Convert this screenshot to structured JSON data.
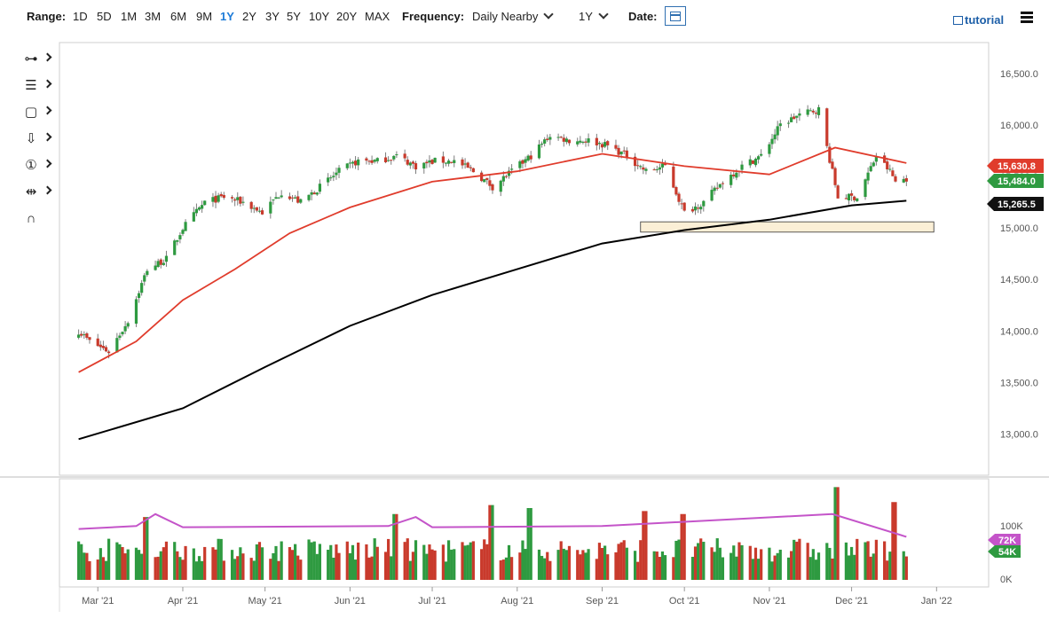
{
  "toolbar": {
    "range_label": "Range:",
    "ranges": [
      "1D",
      "5D",
      "1M",
      "3M",
      "6M",
      "9M",
      "1Y",
      "2Y",
      "3Y",
      "5Y",
      "10Y",
      "20Y",
      "MAX"
    ],
    "active_range": "1Y",
    "frequency_label": "Frequency:",
    "frequency_value": "Daily Nearby",
    "period_value": "1Y",
    "date_label": "Date:",
    "tutorial_label": "tutorial"
  },
  "drawing_tools": [
    "crosshair-tool-icon",
    "fibonacci-tool-icon",
    "rectangle-tool-icon",
    "arrow-down-tool-icon",
    "number-marker-tool-icon",
    "measure-tool-icon",
    "magnet-tool-icon"
  ],
  "colors": {
    "up_candle": "#2e9a40",
    "down_candle": "#c93a2c",
    "ma_fast": "#e03c2c",
    "ma_slow": "#000000",
    "volume_avg": "#c454c9",
    "support_zone_fill": "#fbefd6",
    "accent": "#1d7bd8"
  },
  "chart_data": [
    {
      "type": "candlestick",
      "title": "",
      "x_ticks": [
        "Mar '21",
        "Apr '21",
        "May '21",
        "Jun '21",
        "Jul '21",
        "Aug '21",
        "Sep '21",
        "Oct '21",
        "Nov '21",
        "Dec '21",
        "Jan '22"
      ],
      "y_ticks": [
        "16,500.0",
        "16,000.0",
        "15,500.0",
        "15,000.0",
        "14,500.0",
        "14,000.0",
        "13,500.0",
        "13,000.0"
      ],
      "ylim": [
        12600,
        16800
      ],
      "tick_values": [
        16500,
        16000,
        15500,
        15000,
        14500,
        14000,
        13500,
        13000
      ],
      "grid": false,
      "price_tags": [
        {
          "label": "15,630.8",
          "value": 15630.8,
          "color": "#e03c2c"
        },
        {
          "label": "15,484.0",
          "value": 15484.0,
          "color": "#2e9a40"
        },
        {
          "label": "15,265.5",
          "value": 15265.5,
          "color": "#111111"
        }
      ],
      "support_zone": [
        14960,
        15060
      ],
      "close_path": [
        [
          "2021-02-22",
          14000
        ],
        [
          "2021-02-26",
          13900
        ],
        [
          "2021-03-05",
          13800
        ],
        [
          "2021-03-12",
          14100
        ],
        [
          "2021-03-19",
          14600
        ],
        [
          "2021-03-26",
          14700
        ],
        [
          "2021-04-01",
          15000
        ],
        [
          "2021-04-09",
          15250
        ],
        [
          "2021-04-16",
          15300
        ],
        [
          "2021-04-23",
          15250
        ],
        [
          "2021-04-30",
          15150
        ],
        [
          "2021-05-07",
          15350
        ],
        [
          "2021-05-14",
          15250
        ],
        [
          "2021-05-21",
          15400
        ],
        [
          "2021-05-28",
          15550
        ],
        [
          "2021-06-04",
          15650
        ],
        [
          "2021-06-11",
          15650
        ],
        [
          "2021-06-18",
          15700
        ],
        [
          "2021-06-25",
          15600
        ],
        [
          "2021-07-02",
          15650
        ],
        [
          "2021-07-09",
          15650
        ],
        [
          "2021-07-16",
          15550
        ],
        [
          "2021-07-23",
          15400
        ],
        [
          "2021-07-30",
          15550
        ],
        [
          "2021-08-06",
          15700
        ],
        [
          "2021-08-13",
          15900
        ],
        [
          "2021-08-20",
          15850
        ],
        [
          "2021-08-27",
          15850
        ],
        [
          "2021-09-03",
          15800
        ],
        [
          "2021-09-10",
          15700
        ],
        [
          "2021-09-17",
          15550
        ],
        [
          "2021-09-24",
          15600
        ],
        [
          "2021-10-01",
          15150
        ],
        [
          "2021-10-08",
          15250
        ],
        [
          "2021-10-15",
          15450
        ],
        [
          "2021-10-22",
          15600
        ],
        [
          "2021-10-29",
          15700
        ],
        [
          "2021-11-05",
          16000
        ],
        [
          "2021-11-12",
          16100
        ],
        [
          "2021-11-19",
          16150
        ],
        [
          "2021-11-26",
          15300
        ],
        [
          "2021-12-03",
          15300
        ],
        [
          "2021-12-10",
          15700
        ],
        [
          "2021-12-15",
          15550
        ],
        [
          "2021-12-17",
          15450
        ],
        [
          "2021-12-21",
          15484
        ]
      ],
      "ma_fast_points": [
        [
          "2021-02-22",
          13600
        ],
        [
          "2021-03-15",
          13900
        ],
        [
          "2021-04-01",
          14300
        ],
        [
          "2021-04-20",
          14600
        ],
        [
          "2021-05-10",
          14950
        ],
        [
          "2021-06-01",
          15200
        ],
        [
          "2021-07-01",
          15450
        ],
        [
          "2021-08-01",
          15550
        ],
        [
          "2021-09-01",
          15720
        ],
        [
          "2021-10-01",
          15600
        ],
        [
          "2021-11-01",
          15520
        ],
        [
          "2021-11-25",
          15780
        ],
        [
          "2021-12-21",
          15630
        ]
      ],
      "ma_slow_points": [
        [
          "2021-02-22",
          12950
        ],
        [
          "2021-04-01",
          13250
        ],
        [
          "2021-05-01",
          13650
        ],
        [
          "2021-06-01",
          14050
        ],
        [
          "2021-07-01",
          14350
        ],
        [
          "2021-08-01",
          14600
        ],
        [
          "2021-09-01",
          14850
        ],
        [
          "2021-10-01",
          14980
        ],
        [
          "2021-11-01",
          15080
        ],
        [
          "2021-12-01",
          15220
        ],
        [
          "2021-12-21",
          15265
        ]
      ]
    },
    {
      "type": "bar",
      "title": "",
      "y_ticks": [
        "100K",
        "0K"
      ],
      "tick_values": [
        100000,
        0
      ],
      "ylim": [
        0,
        160000
      ],
      "value_tags": [
        {
          "label": "72K",
          "value": 72000,
          "color": "#c454c9"
        },
        {
          "label": "54K",
          "value": 54000,
          "color": "#2e9a40"
        }
      ],
      "avg_line": [
        [
          "2021-02-22",
          85000
        ],
        [
          "2021-03-15",
          90000
        ],
        [
          "2021-03-22",
          110000
        ],
        [
          "2021-04-01",
          88000
        ],
        [
          "2021-06-15",
          90000
        ],
        [
          "2021-06-25",
          105000
        ],
        [
          "2021-07-01",
          88000
        ],
        [
          "2021-09-01",
          90000
        ],
        [
          "2021-11-24",
          110000
        ],
        [
          "2021-12-21",
          72000
        ]
      ],
      "spikes": [
        [
          "2021-03-19",
          105000
        ],
        [
          "2021-06-18",
          110000
        ],
        [
          "2021-07-23",
          125000
        ],
        [
          "2021-08-06",
          120000
        ],
        [
          "2021-09-17",
          115000
        ],
        [
          "2021-10-01",
          110000
        ],
        [
          "2021-11-26",
          155000
        ],
        [
          "2021-12-17",
          130000
        ]
      ]
    }
  ]
}
